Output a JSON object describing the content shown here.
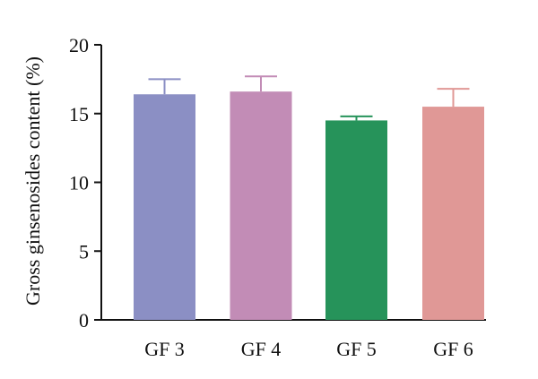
{
  "chart_data": {
    "type": "bar",
    "title": "",
    "xlabel": "",
    "ylabel": "Gross ginsenosides content (%)",
    "ylim": [
      0,
      20
    ],
    "yticks": [
      0,
      5,
      10,
      15,
      20
    ],
    "grid": false,
    "categories": [
      "GF 3",
      "GF 4",
      "GF 5",
      "GF 6"
    ],
    "values": [
      16.4,
      16.6,
      14.5,
      15.5
    ],
    "errors": [
      1.1,
      1.1,
      0.3,
      1.3
    ],
    "colors": [
      "#8b8fc4",
      "#c28cb6",
      "#26935a",
      "#e09896"
    ],
    "error_bar_style": "upper cap, same color as bar"
  }
}
